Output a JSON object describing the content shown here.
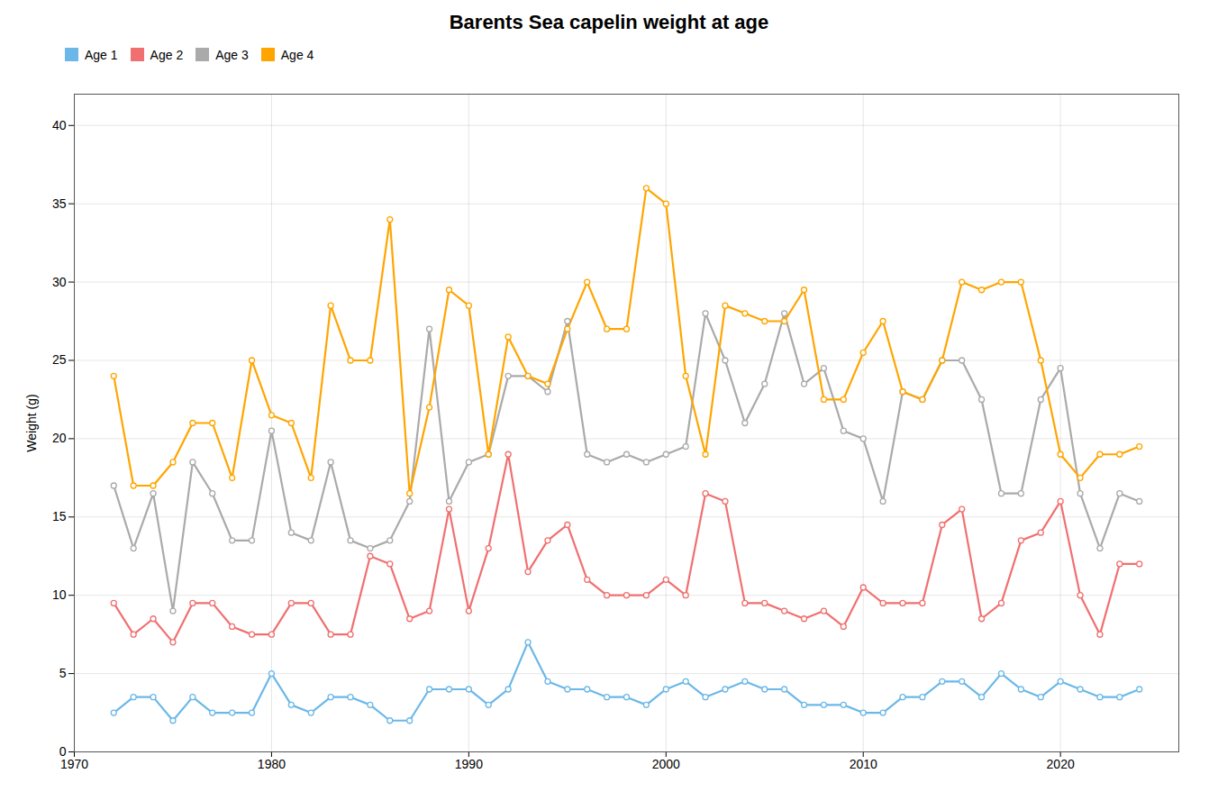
{
  "chart_data": {
    "type": "line",
    "title": "Barents Sea capelin weight at age",
    "ylabel": "Weight (g)",
    "x": [
      1972,
      1973,
      1974,
      1975,
      1976,
      1977,
      1978,
      1979,
      1980,
      1981,
      1982,
      1983,
      1984,
      1985,
      1986,
      1987,
      1988,
      1989,
      1990,
      1991,
      1992,
      1993,
      1994,
      1995,
      1996,
      1997,
      1998,
      1999,
      2000,
      2001,
      2002,
      2003,
      2004,
      2005,
      2006,
      2007,
      2008,
      2009,
      2010,
      2011,
      2012,
      2013,
      2014,
      2015,
      2016,
      2017,
      2018,
      2019,
      2020,
      2021,
      2022,
      2023,
      2024
    ],
    "series": [
      {
        "name": "Age 1",
        "color": "#6BB8E8",
        "marker": "circle",
        "values": [
          2.5,
          3.5,
          3.5,
          2.0,
          3.5,
          2.5,
          2.5,
          2.5,
          5.0,
          3.0,
          2.5,
          3.5,
          3.5,
          3.0,
          2.0,
          2.0,
          4.0,
          4.0,
          4.0,
          3.0,
          4.0,
          7.0,
          4.5,
          4.0,
          4.0,
          3.5,
          3.5,
          3.0,
          4.0,
          4.5,
          3.5,
          4.0,
          4.5,
          4.0,
          4.0,
          3.0,
          3.0,
          3.0,
          2.5,
          2.5,
          3.5,
          3.5,
          4.5,
          4.5,
          3.5,
          5.0,
          4.0,
          3.5,
          4.5,
          4.0,
          3.5,
          3.5,
          4.0
        ]
      },
      {
        "name": "Age 2",
        "color": "#F07070",
        "marker": "circle",
        "values": [
          9.5,
          7.5,
          8.5,
          7.0,
          9.5,
          9.5,
          8.0,
          7.5,
          7.5,
          9.5,
          9.5,
          7.5,
          7.5,
          12.5,
          12.0,
          8.5,
          9.0,
          15.5,
          9.0,
          13.0,
          19.0,
          11.5,
          13.5,
          14.5,
          11.0,
          10.0,
          10.0,
          10.0,
          11.0,
          10.0,
          16.5,
          16.0,
          9.5,
          9.5,
          9.0,
          8.5,
          9.0,
          8.0,
          10.5,
          9.5,
          9.5,
          9.5,
          14.5,
          15.5,
          8.5,
          9.5,
          13.5,
          14.0,
          16.0,
          10.0,
          7.5,
          12.0,
          12.0
        ]
      },
      {
        "name": "Age 3",
        "color": "#AAAAAA",
        "marker": "circle",
        "values": [
          17.0,
          13.0,
          16.5,
          9.0,
          18.5,
          16.5,
          13.5,
          13.5,
          20.5,
          14.0,
          13.5,
          18.5,
          13.5,
          13.0,
          13.5,
          16.0,
          27.0,
          16.0,
          18.5,
          19.0,
          24.0,
          24.0,
          23.0,
          27.5,
          19.0,
          18.5,
          19.0,
          18.5,
          19.0,
          19.5,
          28.0,
          25.0,
          21.0,
          23.5,
          28.0,
          23.5,
          24.5,
          20.5,
          20.0,
          16.0,
          23.0,
          22.5,
          25.0,
          25.0,
          22.5,
          16.5,
          16.5,
          22.5,
          24.5,
          16.5,
          13.0,
          16.5,
          16.0
        ]
      },
      {
        "name": "Age 4",
        "color": "#FFA500",
        "marker": "circle",
        "values": [
          24.0,
          17.0,
          17.0,
          18.5,
          21.0,
          21.0,
          17.5,
          25.0,
          21.5,
          21.0,
          17.5,
          28.5,
          25.0,
          25.0,
          34.0,
          16.5,
          22.0,
          29.5,
          28.5,
          19.0,
          26.5,
          24.0,
          23.5,
          27.0,
          30.0,
          27.0,
          27.0,
          36.0,
          35.0,
          24.0,
          19.0,
          28.5,
          28.0,
          27.5,
          27.5,
          29.5,
          22.5,
          22.5,
          25.5,
          27.5,
          23.0,
          22.5,
          25.0,
          30.0,
          29.5,
          30.0,
          30.0,
          25.0,
          19.0,
          17.5,
          19.0,
          19.0,
          19.5
        ]
      }
    ],
    "xlim": [
      1970,
      2026
    ],
    "ylim": [
      0,
      42
    ],
    "xticks": [
      1970,
      1980,
      1990,
      2000,
      2010,
      2020
    ],
    "yticks": [
      0,
      5,
      10,
      15,
      20,
      25,
      30,
      35,
      40
    ],
    "grid": true,
    "legend": "upper left"
  }
}
